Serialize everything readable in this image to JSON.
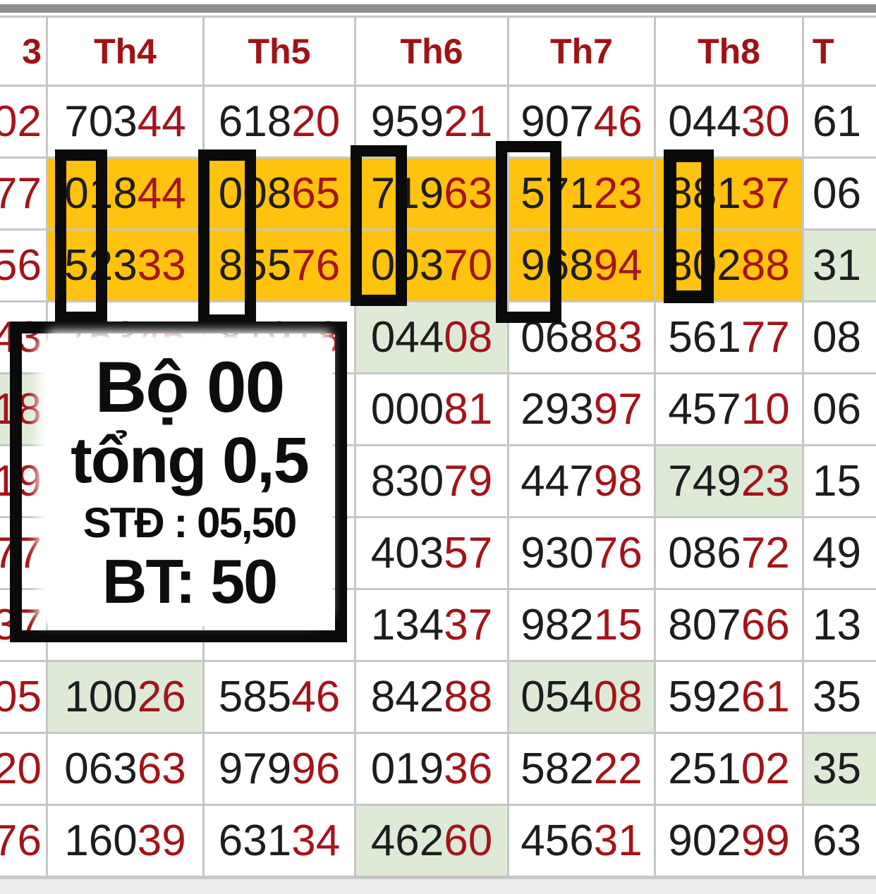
{
  "colors": {
    "accent_orange": "#FFC20E",
    "highlight_green": "#DEEAD6",
    "digit_red": "#A3141A",
    "digit_black": "#1D1D1F",
    "header_red": "#A01216",
    "grid_line": "#C6C6C6"
  },
  "note": {
    "line1": "Bộ 00",
    "line2": "tổng 0,5",
    "line3": "STĐ : 05,50",
    "line4": "BT: 50"
  },
  "table": {
    "headers": [
      "3",
      "Th4",
      "Th5",
      "Th6",
      "Th7",
      "Th8",
      "T"
    ],
    "rows": [
      {
        "cells": [
          {
            "r": "02"
          },
          {
            "b": "703",
            "r": "44"
          },
          {
            "b": "618",
            "r": "20"
          },
          {
            "b": "959",
            "r": "21"
          },
          {
            "b": "907",
            "r": "46"
          },
          {
            "b": "044",
            "r": "30"
          },
          {
            "b": "61"
          }
        ]
      },
      {
        "cells": [
          {
            "r": "77"
          },
          {
            "b": "018",
            "r": "44",
            "bg": "orange"
          },
          {
            "b": "008",
            "r": "65",
            "bg": "orange"
          },
          {
            "b": "719",
            "r": "63",
            "bg": "orange"
          },
          {
            "b": "571",
            "r": "23",
            "bg": "orange"
          },
          {
            "b": "881",
            "r": "37",
            "bg": "orange"
          },
          {
            "b": "06"
          }
        ]
      },
      {
        "cells": [
          {
            "r": "56"
          },
          {
            "b": "523",
            "r": "33",
            "bg": "orange"
          },
          {
            "b": "855",
            "r": "76",
            "bg": "orange"
          },
          {
            "b": "003",
            "r": "70",
            "bg": "orange"
          },
          {
            "b": "968",
            "r": "94",
            "bg": "orange"
          },
          {
            "b": "802",
            "r": "88",
            "bg": "orange"
          },
          {
            "b": "31",
            "bg": "green"
          }
        ]
      },
      {
        "cells": [
          {
            "r": "43"
          },
          {
            "b": "753",
            "r": "45"
          },
          {
            "b": "819",
            "r": "18"
          },
          {
            "b": "044",
            "r": "08",
            "bg": "green"
          },
          {
            "b": "068",
            "r": "83"
          },
          {
            "b": "561",
            "r": "77"
          },
          {
            "b": "08"
          }
        ]
      },
      {
        "cells": [
          {
            "r": "18",
            "bg": "green"
          },
          {
            "b": "",
            "r": ""
          },
          {
            "b": "",
            "r": ""
          },
          {
            "b": "000",
            "r": "81"
          },
          {
            "b": "293",
            "r": "97"
          },
          {
            "b": "457",
            "r": "10"
          },
          {
            "b": "06"
          }
        ]
      },
      {
        "cells": [
          {
            "r": "19"
          },
          {
            "b": "",
            "r": ""
          },
          {
            "b": "",
            "r": ""
          },
          {
            "b": "830",
            "r": "79"
          },
          {
            "b": "447",
            "r": "98"
          },
          {
            "b": "749",
            "r": "23",
            "bg": "green"
          },
          {
            "b": "15"
          }
        ]
      },
      {
        "cells": [
          {
            "r": "77"
          },
          {
            "b": "",
            "r": ""
          },
          {
            "b": "",
            "r": ""
          },
          {
            "b": "403",
            "r": "57"
          },
          {
            "b": "930",
            "r": "76"
          },
          {
            "b": "086",
            "r": "72"
          },
          {
            "b": "49"
          }
        ]
      },
      {
        "cells": [
          {
            "r": "37"
          },
          {
            "b": "",
            "r": ""
          },
          {
            "b": "",
            "r": ""
          },
          {
            "b": "134",
            "r": "37"
          },
          {
            "b": "982",
            "r": "15"
          },
          {
            "b": "807",
            "r": "66"
          },
          {
            "b": "13"
          }
        ]
      },
      {
        "cells": [
          {
            "r": "05"
          },
          {
            "b": "100",
            "r": "26",
            "bg": "green"
          },
          {
            "b": "585",
            "r": "46"
          },
          {
            "b": "842",
            "r": "88"
          },
          {
            "b": "054",
            "r": "08",
            "bg": "green"
          },
          {
            "b": "592",
            "r": "61"
          },
          {
            "b": "35"
          }
        ]
      },
      {
        "cells": [
          {
            "r": "20"
          },
          {
            "b": "063",
            "r": "63"
          },
          {
            "b": "979",
            "r": "96"
          },
          {
            "b": "019",
            "r": "36"
          },
          {
            "b": "582",
            "r": "22"
          },
          {
            "b": "251",
            "r": "02"
          },
          {
            "b": "35",
            "bg": "green"
          }
        ]
      },
      {
        "cells": [
          {
            "r": "76"
          },
          {
            "b": "160",
            "r": "39"
          },
          {
            "b": "631",
            "r": "34"
          },
          {
            "b": "462",
            "r": "60",
            "bg": "green"
          },
          {
            "b": "456",
            "r": "31"
          },
          {
            "b": "902",
            "r": "99"
          },
          {
            "b": "63"
          }
        ]
      }
    ]
  }
}
